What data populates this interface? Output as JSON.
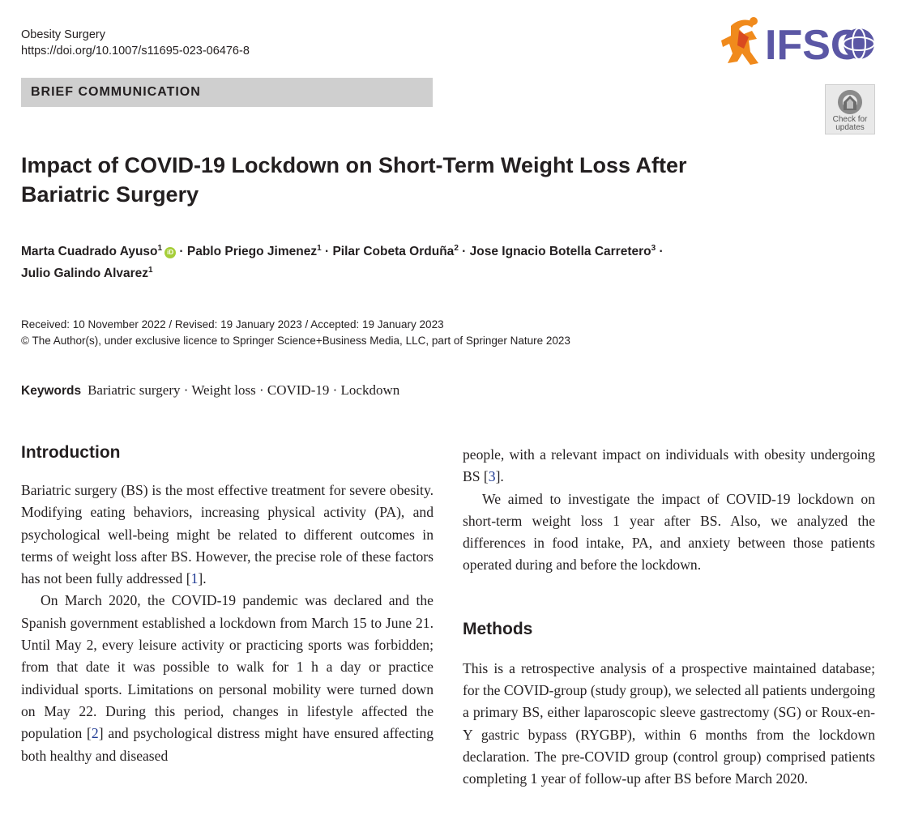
{
  "journal": {
    "name": "Obesity Surgery",
    "doi": "https://doi.org/10.1007/s11695-023-06476-8"
  },
  "logo": {
    "text": "IFSO",
    "colors": {
      "text": "#5b57a5",
      "figure": "#f08a1c",
      "globe": "#5b57a5"
    }
  },
  "section_tag": "BRIEF COMMUNICATION",
  "check_updates": {
    "line1": "Check for",
    "line2": "updates"
  },
  "title": {
    "line1": "Impact of COVID-19 Lockdown on Short-Term Weight Loss After",
    "line2": "Bariatric Surgery"
  },
  "authors": [
    {
      "name": "Marta Cuadrado Ayuso",
      "aff": "1"
    },
    {
      "name": "Pablo Priego Jimenez",
      "aff": "1"
    },
    {
      "name": "Pilar Cobeta Orduña",
      "aff": "2"
    },
    {
      "name": "Jose Ignacio Botella Carretero",
      "aff": "3"
    },
    {
      "name": "Julio Galindo Alvarez",
      "aff": "1"
    }
  ],
  "orcid_label": "iD",
  "dates": {
    "line1": "Received: 10 November 2022 / Revised: 19 January 2023 / Accepted: 19 January 2023",
    "line2": "© The Author(s), under exclusive licence to Springer Science+Business Media, LLC, part of Springer Nature 2023"
  },
  "keywords": {
    "label": "Keywords",
    "text": "Bariatric surgery · Weight loss · COVID-19 · Lockdown"
  },
  "intro": {
    "heading": "Introduction",
    "p1_before": "Bariatric surgery (BS) is the most effective treatment for severe obesity. Modifying eating behaviors, increasing physical activity (PA), and psychological well-being might be related to different outcomes in terms of weight loss after BS. However, the precise role of these factors has not been fully addressed [",
    "p1_ref": "1",
    "p1_after": "].",
    "p2_before": "On March 2020, the COVID-19 pandemic was declared and the Spanish government established a lockdown from March 15 to June 21. Until May 2, every leisure activity or practicing sports was forbidden; from that date it was possible to walk for 1 h a day or practice individual sports. Limitations on personal mobility were turned down on May 22. During this period, changes in lifestyle affected the population [",
    "p2_ref": "2",
    "p2_after": "] and psychological distress might have ensured affecting both healthy and diseased"
  },
  "right": {
    "cont_before": "people, with a relevant impact on individuals with obesity undergoing BS [",
    "cont_ref": "3",
    "cont_after": "].",
    "aim": "We aimed to investigate the impact of COVID-19 lockdown on short-term weight loss 1 year after BS. Also, we analyzed the differences in food intake, PA, and anxiety between those patients operated during and before the lockdown.",
    "methods_heading": "Methods",
    "methods_text": "This is a retrospective analysis of a prospective maintained database; for the COVID-group (study group), we selected all patients undergoing a primary BS, either laparoscopic sleeve gastrectomy (SG) or Roux-en-Y gastric bypass (RYGBP), within 6 months from the lockdown declaration. The pre-COVID group (control group) comprised patients completing 1 year of follow-up after BS before March 2020."
  }
}
